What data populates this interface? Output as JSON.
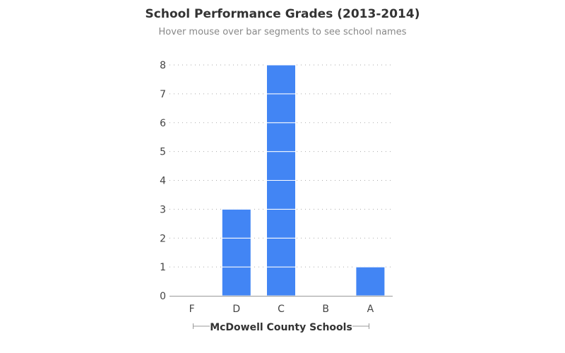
{
  "chart_data": {
    "type": "bar",
    "stacked": true,
    "title": "School Performance Grades (2013-2014)",
    "subtitle": "Hover mouse over bar segments to see school names",
    "xlabel": "McDowell County Schools",
    "ylabel": "",
    "categories": [
      "F",
      "D",
      "C",
      "B",
      "A"
    ],
    "values": [
      0,
      3,
      8,
      0,
      1
    ],
    "ylim": [
      0,
      8
    ],
    "yticks": [
      "0",
      "1",
      "2",
      "3",
      "4",
      "5",
      "6",
      "7",
      "8"
    ],
    "grid": true,
    "bar_color": "#4285f4"
  }
}
